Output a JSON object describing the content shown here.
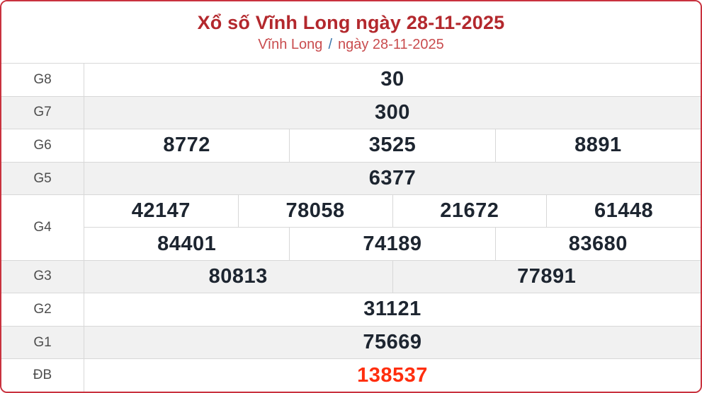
{
  "header": {
    "title": "Xổ số Vĩnh Long ngày 28-11-2025",
    "province_link": "Vĩnh Long",
    "separator": "/",
    "date_link": "ngày 28-11-2025"
  },
  "colors": {
    "border_red": "#c9323e",
    "title_red": "#b3282d",
    "subtitle_red": "#c94c4e",
    "sep_blue": "#3a77ad",
    "alt_bg": "#f1f1f1",
    "grid_line": "#d8d8d8",
    "label_gray": "#4d4d4d",
    "number_dark": "#1d2530",
    "special_red": "#ff2e0e"
  },
  "results": {
    "rows": [
      {
        "label": "G8",
        "groups": [
          [
            "30"
          ]
        ],
        "special": false
      },
      {
        "label": "G7",
        "groups": [
          [
            "300"
          ]
        ],
        "special": false
      },
      {
        "label": "G6",
        "groups": [
          [
            "8772",
            "3525",
            "8891"
          ]
        ],
        "special": false
      },
      {
        "label": "G5",
        "groups": [
          [
            "6377"
          ]
        ],
        "special": false
      },
      {
        "label": "G4",
        "groups": [
          [
            "42147",
            "78058",
            "21672",
            "61448"
          ],
          [
            "84401",
            "74189",
            "83680"
          ]
        ],
        "special": false
      },
      {
        "label": "G3",
        "groups": [
          [
            "80813",
            "77891"
          ]
        ],
        "special": false
      },
      {
        "label": "G2",
        "groups": [
          [
            "31121"
          ]
        ],
        "special": false
      },
      {
        "label": "G1",
        "groups": [
          [
            "75669"
          ]
        ],
        "special": false
      },
      {
        "label": "ĐB",
        "groups": [
          [
            "138537"
          ]
        ],
        "special": true
      }
    ]
  }
}
